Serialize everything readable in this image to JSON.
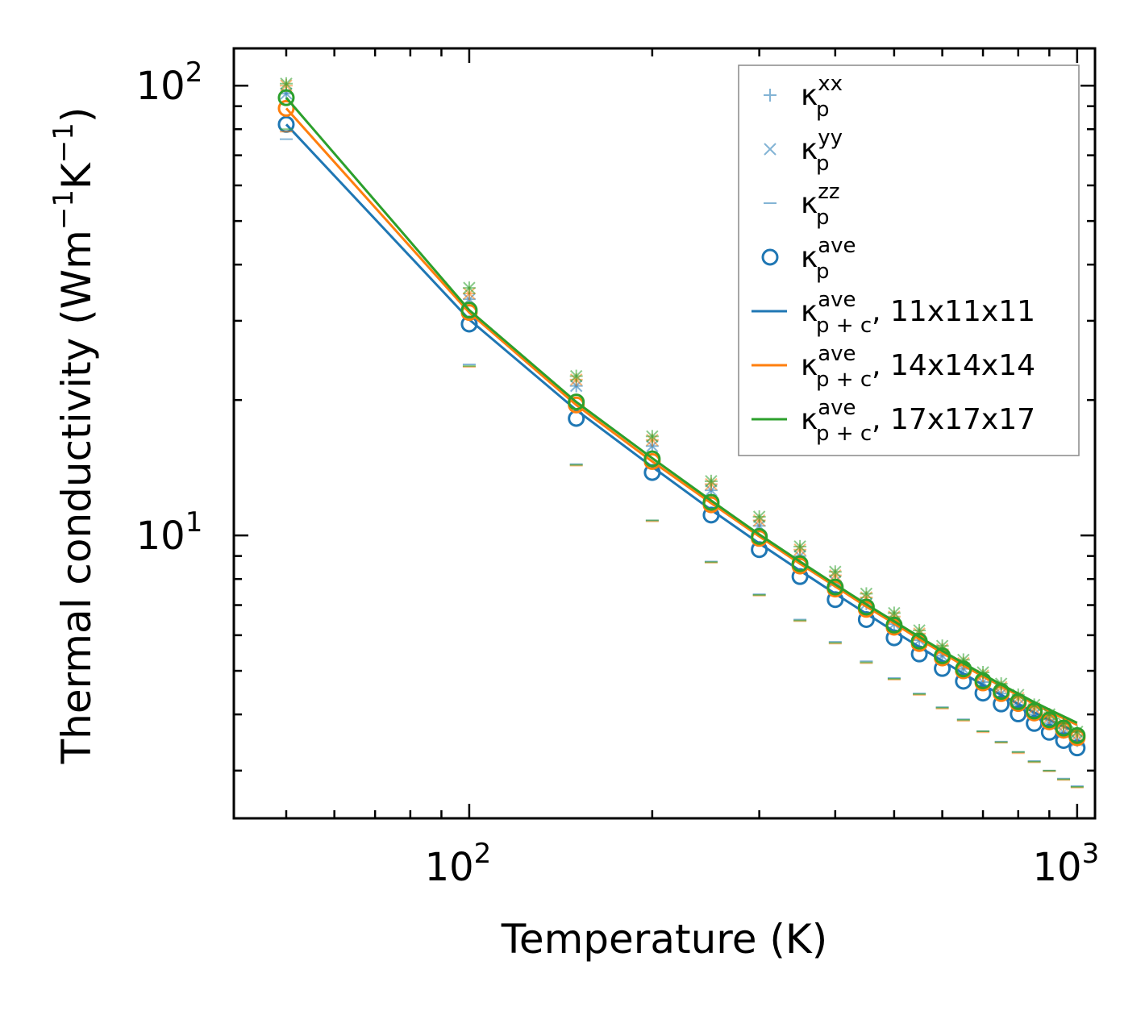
{
  "chart_data": {
    "type": "scatter",
    "xscale": "log",
    "yscale": "log",
    "xlim": [
      41,
      1070
    ],
    "ylim": [
      2.35,
      121
    ],
    "xlabel": "Temperature (K)",
    "ylabel_base": "Thermal conductivity (Wm",
    "ylabel_mid": "K",
    "ylabel_close": ")",
    "ylabel_exp": "−1",
    "x_tick_labels": [
      {
        "value": 100,
        "base": "10",
        "exp": "2"
      },
      {
        "value": 1000,
        "base": "10",
        "exp": "3"
      }
    ],
    "y_tick_labels": [
      {
        "value": 10,
        "base": "10",
        "exp": "1"
      },
      {
        "value": 100,
        "base": "10",
        "exp": "2"
      }
    ],
    "x": [
      50,
      100,
      150,
      200,
      250,
      300,
      350,
      400,
      450,
      500,
      550,
      600,
      650,
      700,
      750,
      800,
      850,
      900,
      950,
      1000
    ],
    "series": [
      {
        "group": "11x11x11",
        "color": "#1f77b4",
        "xx": [
          96,
          33.5,
          21.5,
          15.8,
          12.6,
          10.5,
          9.0,
          7.9,
          7.05,
          6.35,
          5.85,
          5.4,
          5.05,
          4.72,
          4.45,
          4.2,
          4.0,
          3.82,
          3.65,
          3.5
        ],
        "yy": [
          96,
          33.5,
          21.5,
          15.8,
          12.6,
          10.5,
          9.0,
          7.9,
          7.05,
          6.35,
          5.85,
          5.4,
          5.05,
          4.72,
          4.45,
          4.2,
          4.0,
          3.82,
          3.65,
          3.5
        ],
        "zz": [
          76,
          24.0,
          14.4,
          10.8,
          8.75,
          7.4,
          6.5,
          5.8,
          5.25,
          4.82,
          4.45,
          4.15,
          3.9,
          3.67,
          3.48,
          3.3,
          3.15,
          3.0,
          2.88,
          2.77
        ],
        "ave": [
          82,
          29.5,
          18.2,
          13.8,
          11.1,
          9.3,
          8.1,
          7.2,
          6.5,
          5.92,
          5.45,
          5.06,
          4.74,
          4.46,
          4.22,
          4.01,
          3.82,
          3.65,
          3.5,
          3.37
        ],
        "line": [
          82,
          30.2,
          19.0,
          14.2,
          11.4,
          9.6,
          8.35,
          7.42,
          6.7,
          6.12,
          5.65,
          5.26,
          4.93,
          4.65,
          4.42,
          4.22,
          4.04,
          3.89,
          3.76,
          3.65
        ]
      },
      {
        "group": "14x14x14",
        "color": "#ff7f0e",
        "xx": [
          100,
          34.5,
          22.2,
          16.3,
          13.0,
          10.8,
          9.3,
          8.15,
          7.28,
          6.6,
          6.05,
          5.58,
          5.2,
          4.88,
          4.6,
          4.35,
          4.13,
          3.94,
          3.76,
          3.6
        ],
        "yy": [
          100,
          34.5,
          22.2,
          16.3,
          13.0,
          10.8,
          9.3,
          8.15,
          7.28,
          6.6,
          6.05,
          5.58,
          5.2,
          4.88,
          4.6,
          4.35,
          4.13,
          3.94,
          3.76,
          3.6
        ],
        "zz": [
          79,
          23.7,
          14.3,
          10.75,
          8.7,
          7.35,
          6.45,
          5.75,
          5.2,
          4.78,
          4.42,
          4.12,
          3.87,
          3.65,
          3.46,
          3.28,
          3.13,
          2.99,
          2.86,
          2.75
        ],
        "ave": [
          89,
          31.3,
          19.5,
          14.6,
          11.7,
          9.85,
          8.55,
          7.6,
          6.85,
          6.25,
          5.75,
          5.34,
          5.0,
          4.7,
          4.45,
          4.23,
          4.03,
          3.85,
          3.69,
          3.55
        ],
        "line": [
          89,
          31.3,
          19.5,
          14.6,
          11.8,
          9.95,
          8.65,
          7.7,
          6.95,
          6.37,
          5.88,
          5.48,
          5.14,
          4.86,
          4.62,
          4.41,
          4.22,
          4.06,
          3.92,
          3.79
        ]
      },
      {
        "group": "17x17x17",
        "color": "#2ca02c",
        "xx": [
          101,
          35.5,
          22.6,
          16.6,
          13.2,
          11.0,
          9.45,
          8.3,
          7.42,
          6.72,
          6.15,
          5.68,
          5.29,
          4.96,
          4.68,
          4.42,
          4.2,
          4.0,
          3.82,
          3.66
        ],
        "yy": [
          101,
          35.5,
          22.6,
          16.6,
          13.2,
          11.0,
          9.45,
          8.3,
          7.42,
          6.72,
          6.15,
          5.68,
          5.29,
          4.96,
          4.68,
          4.42,
          4.2,
          4.0,
          3.82,
          3.66
        ],
        "zz": [
          80,
          23.8,
          14.35,
          10.8,
          8.72,
          7.37,
          6.47,
          5.77,
          5.22,
          4.8,
          4.44,
          4.14,
          3.89,
          3.67,
          3.47,
          3.3,
          3.14,
          3.0,
          2.87,
          2.76
        ],
        "ave": [
          94,
          31.7,
          19.8,
          14.8,
          11.85,
          9.95,
          8.65,
          7.68,
          6.93,
          6.32,
          5.82,
          5.4,
          5.05,
          4.75,
          4.5,
          4.27,
          4.07,
          3.89,
          3.73,
          3.59
        ],
        "line": [
          94,
          31.7,
          19.8,
          14.85,
          11.95,
          10.05,
          8.75,
          7.78,
          7.03,
          6.44,
          5.95,
          5.54,
          5.2,
          4.91,
          4.66,
          4.45,
          4.26,
          4.1,
          3.96,
          3.83
        ]
      }
    ],
    "legend": {
      "location": "top-right",
      "symbol": "κ",
      "entries": [
        {
          "marker": "plus",
          "sub": "p",
          "sup": "xx",
          "suffix": ""
        },
        {
          "marker": "cross",
          "sub": "p",
          "sup": "yy",
          "suffix": ""
        },
        {
          "marker": "hline",
          "sub": "p",
          "sup": "zz",
          "suffix": ""
        },
        {
          "marker": "circle",
          "sub": "p",
          "sup": "ave",
          "suffix": ""
        },
        {
          "marker": "line",
          "sub": "p + c",
          "sup": "ave",
          "suffix": ", 11x11x11",
          "series": 0
        },
        {
          "marker": "line",
          "sub": "p + c",
          "sup": "ave",
          "suffix": ", 14x14x14",
          "series": 1
        },
        {
          "marker": "line",
          "sub": "p + c",
          "sup": "ave",
          "suffix": ", 17x17x17",
          "series": 2
        }
      ]
    }
  }
}
